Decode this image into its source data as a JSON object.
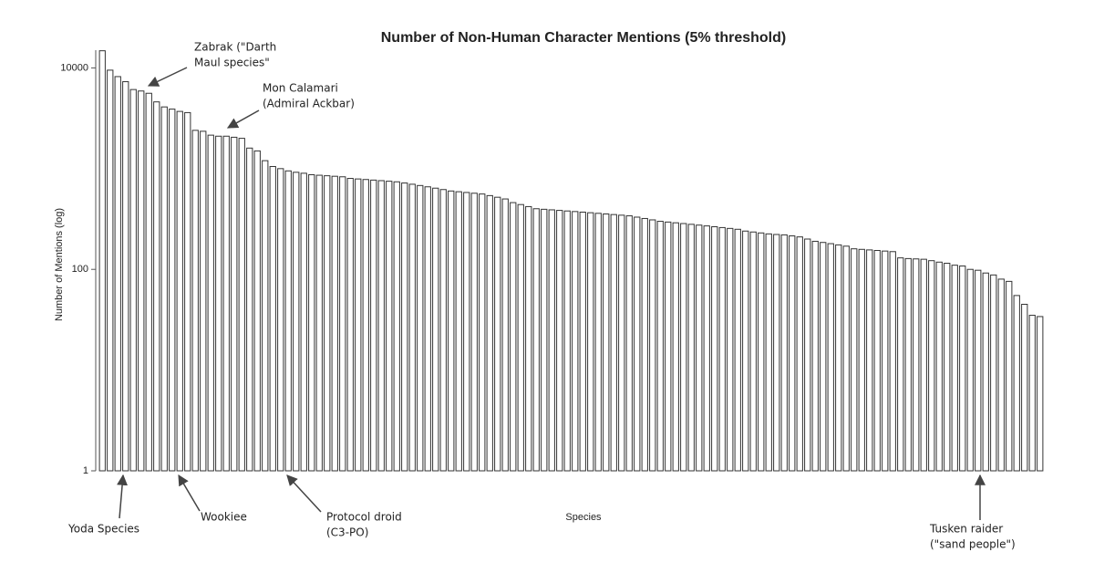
{
  "chart_data": {
    "type": "bar",
    "title": "Number of Non-Human Character Mentions (5% threshold)",
    "x_label": "Species",
    "y_label": "Number of Mentions (log)",
    "log_scale": true,
    "ylim": [
      1,
      15000
    ],
    "yticks": [
      1,
      100,
      10000
    ],
    "color": "#ffffff",
    "edge_color": "#333333",
    "values": [
      14800,
      9500,
      8200,
      7300,
      6100,
      5900,
      5600,
      4600,
      4100,
      3900,
      3700,
      3600,
      2400,
      2350,
      2150,
      2100,
      2100,
      2050,
      2000,
      1600,
      1500,
      1200,
      1050,
      1000,
      950,
      920,
      900,
      870,
      860,
      850,
      840,
      830,
      800,
      790,
      780,
      770,
      760,
      750,
      740,
      720,
      700,
      680,
      660,
      640,
      620,
      600,
      590,
      580,
      570,
      560,
      540,
      520,
      500,
      460,
      440,
      420,
      400,
      395,
      390,
      385,
      380,
      375,
      370,
      365,
      360,
      355,
      350,
      345,
      340,
      330,
      320,
      310,
      300,
      295,
      290,
      285,
      280,
      275,
      270,
      265,
      260,
      255,
      250,
      240,
      235,
      230,
      225,
      222,
      220,
      215,
      210,
      200,
      190,
      185,
      180,
      175,
      170,
      160,
      158,
      156,
      154,
      152,
      150,
      130,
      128,
      127,
      126,
      122,
      118,
      115,
      110,
      108,
      100,
      98,
      92,
      88,
      80,
      76,
      55,
      45,
      35,
      34
    ],
    "annotations": [
      {
        "text": [
          "Zabrak (\"Darth",
          "Maul species\""
        ]
      },
      {
        "text": [
          "Mon Calamari",
          "(Admiral Ackbar)"
        ]
      },
      {
        "text": [
          "Yoda Species"
        ]
      },
      {
        "text": [
          "Wookiee"
        ]
      },
      {
        "text": [
          "Protocol droid",
          "(C3-PO)"
        ]
      },
      {
        "text": [
          "Tusken raider",
          "(\"sand people\")"
        ]
      }
    ]
  }
}
